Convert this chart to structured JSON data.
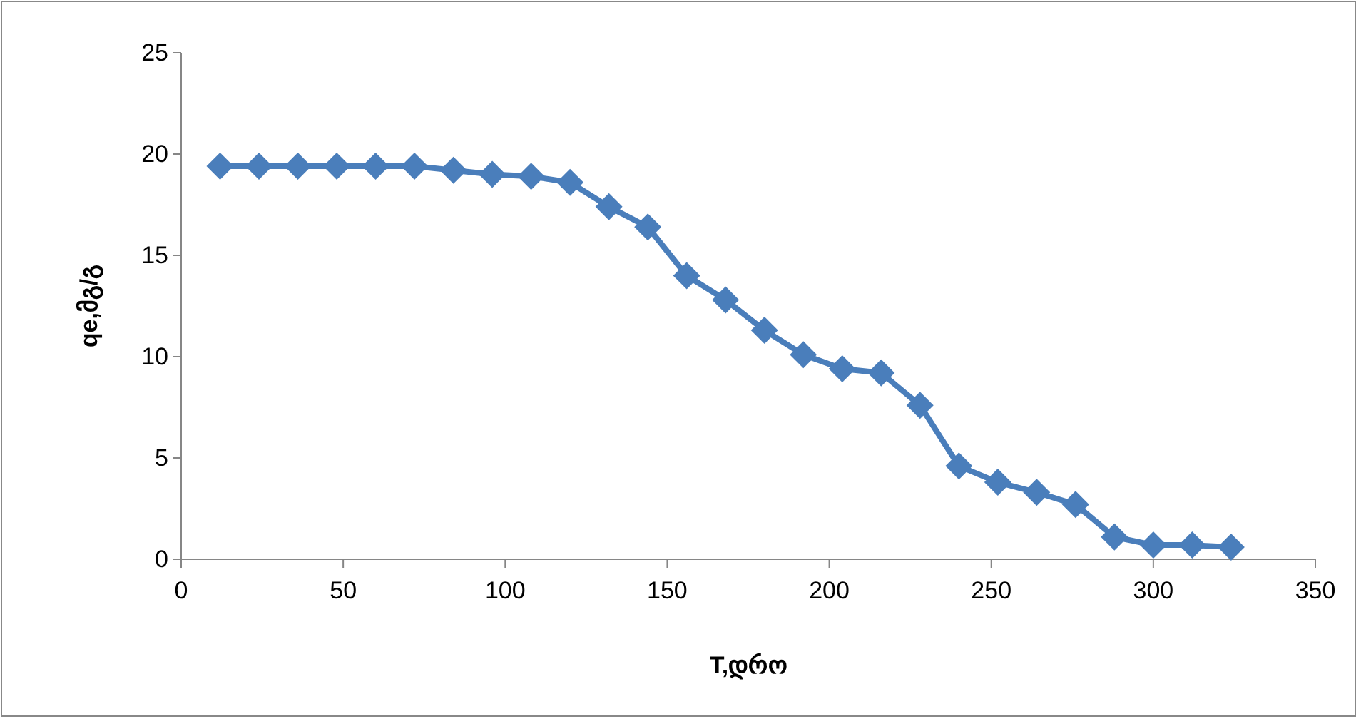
{
  "chart_data": {
    "type": "line",
    "xlabel": "T,დრო",
    "ylabel": "qe,მგ/გ",
    "x": [
      12,
      24,
      36,
      48,
      60,
      72,
      84,
      96,
      108,
      120,
      132,
      144,
      156,
      168,
      180,
      192,
      204,
      216,
      228,
      240,
      252,
      264,
      276,
      288,
      300,
      312,
      324
    ],
    "series": [
      {
        "color": "#4a7ebb",
        "values": [
          19.4,
          19.4,
          19.4,
          19.4,
          19.4,
          19.4,
          19.2,
          19.0,
          18.9,
          18.6,
          17.4,
          16.4,
          14.0,
          12.8,
          11.3,
          10.1,
          9.4,
          9.2,
          7.6,
          4.6,
          3.8,
          3.3,
          2.7,
          1.1,
          0.7,
          0.7,
          0.6
        ]
      }
    ],
    "xlim": [
      0,
      350
    ],
    "xticks": [
      0,
      50,
      100,
      150,
      200,
      250,
      300,
      350
    ],
    "ylim": [
      0,
      25
    ],
    "yticks": [
      0,
      5,
      10,
      15,
      20,
      25
    ],
    "grid": false,
    "marker": "diamond",
    "line_style": "solid"
  }
}
